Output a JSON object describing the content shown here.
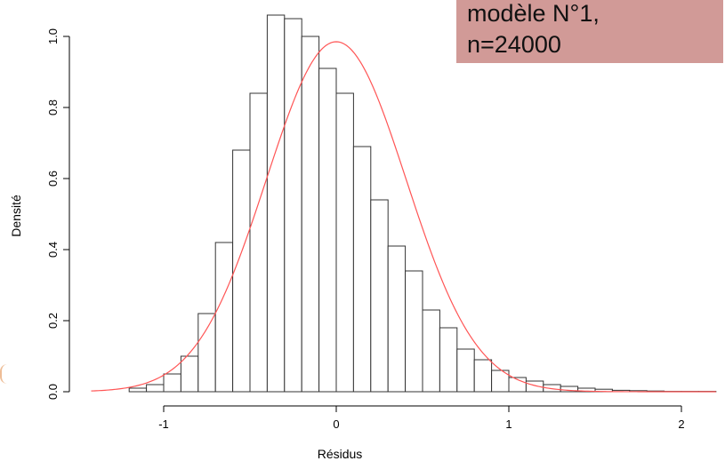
{
  "chart_data": {
    "type": "histogram",
    "xlabel": "Résidus",
    "ylabel": "Densité",
    "xlim": [
      -1.5,
      2.2
    ],
    "ylim": [
      0,
      1.05
    ],
    "x_ticks": [
      "-1",
      "0",
      "1",
      "2"
    ],
    "y_ticks": [
      "0.0",
      "0.2",
      "0.4",
      "0.6",
      "0.8",
      "1.0"
    ],
    "bin_width": 0.1,
    "bins": [
      {
        "x0": -1.2,
        "value": 0.01
      },
      {
        "x0": -1.1,
        "value": 0.02
      },
      {
        "x0": -1.0,
        "value": 0.05
      },
      {
        "x0": -0.9,
        "value": 0.1
      },
      {
        "x0": -0.8,
        "value": 0.22
      },
      {
        "x0": -0.7,
        "value": 0.42
      },
      {
        "x0": -0.6,
        "value": 0.68
      },
      {
        "x0": -0.5,
        "value": 0.84
      },
      {
        "x0": -0.4,
        "value": 1.06
      },
      {
        "x0": -0.3,
        "value": 1.05
      },
      {
        "x0": -0.2,
        "value": 1.0
      },
      {
        "x0": -0.1,
        "value": 0.91
      },
      {
        "x0": 0.0,
        "value": 0.84
      },
      {
        "x0": 0.1,
        "value": 0.69
      },
      {
        "x0": 0.2,
        "value": 0.54
      },
      {
        "x0": 0.3,
        "value": 0.41
      },
      {
        "x0": 0.4,
        "value": 0.34
      },
      {
        "x0": 0.5,
        "value": 0.23
      },
      {
        "x0": 0.6,
        "value": 0.18
      },
      {
        "x0": 0.7,
        "value": 0.12
      },
      {
        "x0": 0.8,
        "value": 0.09
      },
      {
        "x0": 0.9,
        "value": 0.06
      },
      {
        "x0": 1.0,
        "value": 0.04
      },
      {
        "x0": 1.1,
        "value": 0.03
      },
      {
        "x0": 1.2,
        "value": 0.02
      },
      {
        "x0": 1.3,
        "value": 0.015
      },
      {
        "x0": 1.4,
        "value": 0.01
      },
      {
        "x0": 1.5,
        "value": 0.007
      },
      {
        "x0": 1.6,
        "value": 0.004
      },
      {
        "x0": 1.7,
        "value": 0.003
      },
      {
        "x0": 1.8,
        "value": 0.002
      },
      {
        "x0": 1.9,
        "value": 0.001
      },
      {
        "x0": 2.0,
        "value": 0.001
      },
      {
        "x0": 2.1,
        "value": 0.001
      }
    ],
    "density_curve": {
      "type": "normal",
      "mean": 0.0,
      "sd": 0.405,
      "color": "#ff5555"
    },
    "bar_stroke": "#333333",
    "bar_fill": "#ffffff"
  },
  "callout": {
    "line1": "modèle N°1,",
    "line2": "n=24000",
    "background": "#d19a97"
  }
}
